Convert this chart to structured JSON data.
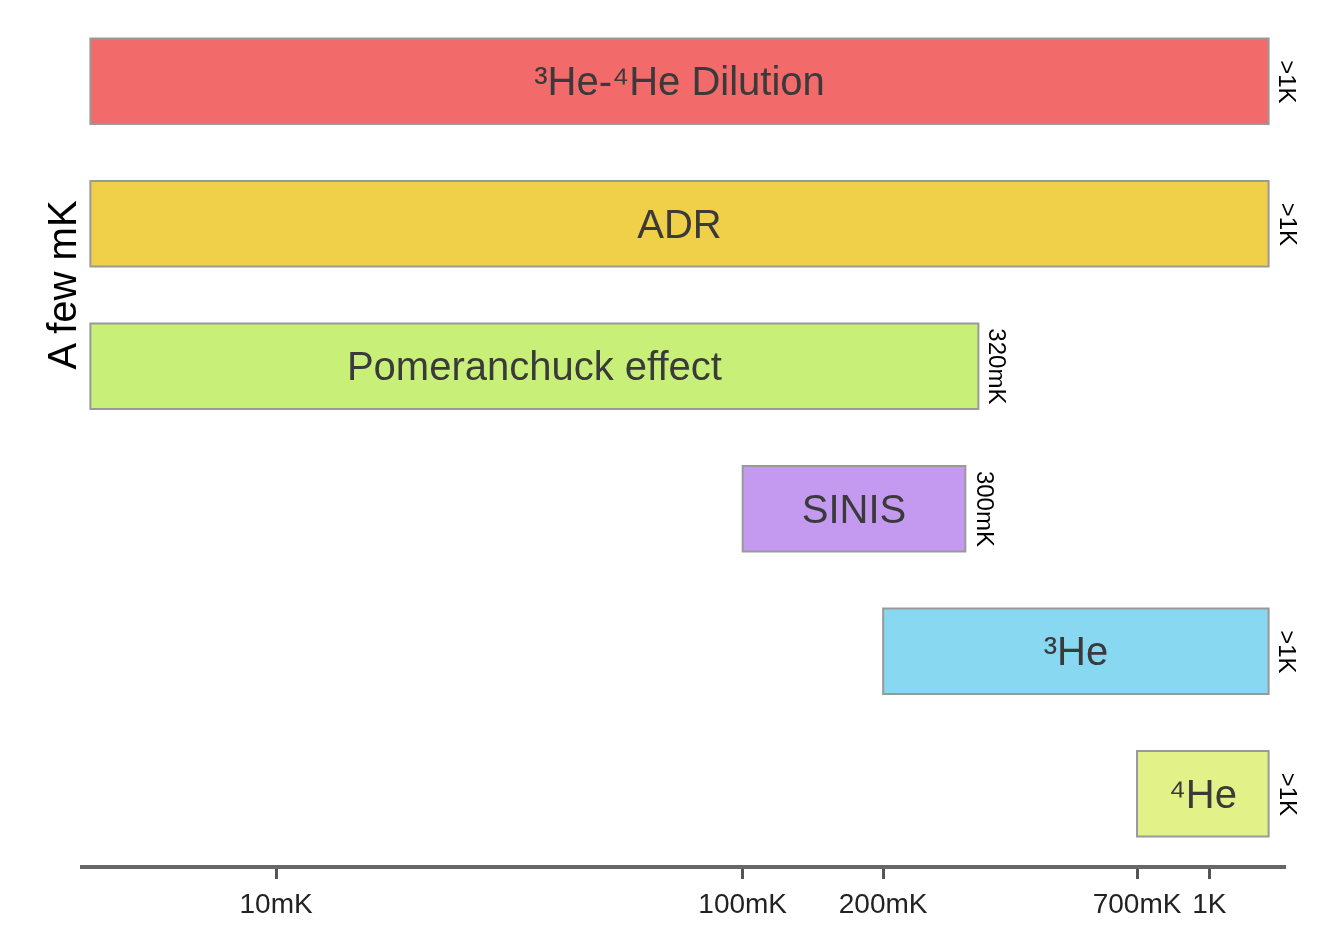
{
  "chart_data": {
    "type": "bar",
    "orientation": "horizontal",
    "log": "x",
    "categories": [
      "³He-⁴He Dilution",
      "ADR",
      "Pomeranchuck effect",
      "SINIS",
      "³He",
      "⁴He"
    ],
    "base": [
      4,
      4,
      4,
      100,
      200,
      700
    ],
    "values": [
      1336,
      1336,
      316,
      200,
      1140,
      640
    ],
    "colors": [
      "#f26a6a",
      "#f0d048",
      "#c8f078",
      "#c49af0",
      "#88d8f2",
      "#e2f288"
    ],
    "xlim": [
      3.8,
      1460
    ],
    "xticks": [
      {
        "value": 10,
        "label": "10mK"
      },
      {
        "value": 100,
        "label": "100mK"
      },
      {
        "value": 200,
        "label": "200mK"
      },
      {
        "value": 700,
        "label": "700mK"
      },
      {
        "value": 1000,
        "label": "1K"
      }
    ],
    "tick_labels": "x",
    "annotations": [
      "A few mK",
      {
        "text": ">1K",
        "x": 1340,
        "y": "³He-⁴He Dilution"
      },
      {
        "text": ">1K",
        "x": 1340,
        "y": "ADR"
      },
      {
        "text": "320mK",
        "x": 320,
        "y": "Pomeranchuck effect"
      },
      {
        "text": "300mK",
        "x": 300,
        "y": "SINIS"
      },
      {
        "text": ">1K",
        "x": 1340,
        "y": "³He"
      },
      {
        "text": ">1K",
        "x": 1340,
        "y": "⁴He"
      }
    ]
  }
}
